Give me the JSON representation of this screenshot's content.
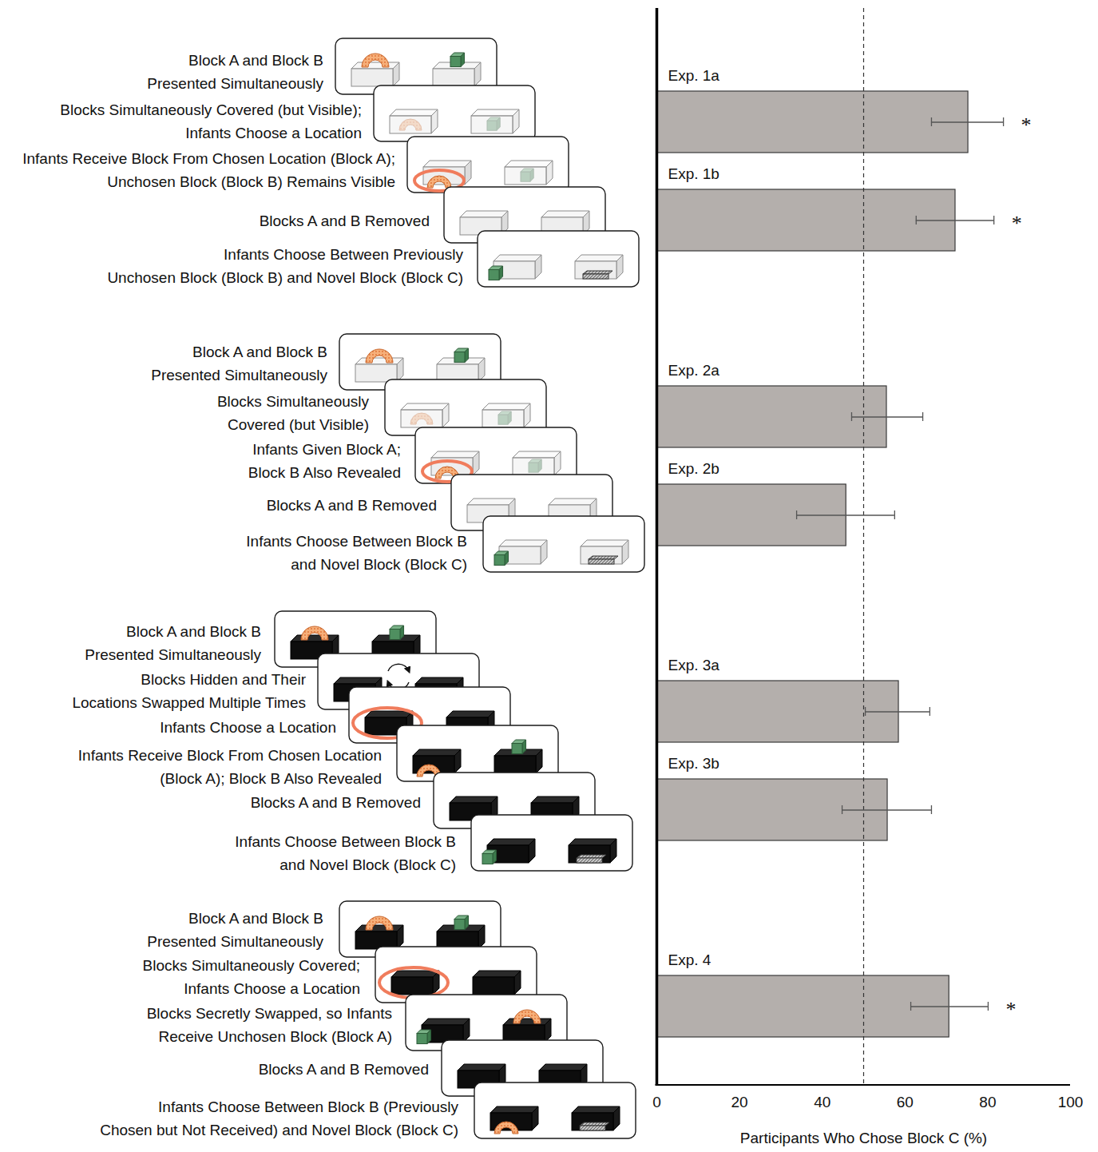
{
  "chart_data": {
    "type": "bar",
    "orientation": "horizontal",
    "categories": [
      "Exp. 1a",
      "Exp. 1b",
      null,
      "Exp. 2a",
      "Exp. 2b",
      null,
      "Exp. 3a",
      "Exp. 3b",
      null,
      "Exp. 4"
    ],
    "values": [
      75.3,
      72.2,
      null,
      55.6,
      45.8,
      null,
      58.5,
      55.8,
      null,
      70.7
    ],
    "error_bars": [
      [
        66.4,
        83.8
      ],
      [
        62.7,
        81.5
      ],
      null,
      [
        47.1,
        64.3
      ],
      [
        33.8,
        57.5
      ],
      null,
      [
        50.4,
        66.0
      ],
      [
        44.8,
        66.4
      ],
      null,
      [
        61.4,
        80.1
      ]
    ],
    "annotations": [
      "*",
      "*",
      null,
      null,
      null,
      null,
      null,
      null,
      null,
      "*"
    ],
    "reference_line": 50,
    "color": "#b4afac",
    "xlabel": "Participants Who Chose Block C (%)",
    "xlim": [
      0,
      100
    ],
    "xticks": [
      0,
      20,
      40,
      60,
      80,
      100
    ],
    "grid": false,
    "tick_labels": "x"
  },
  "diagram": {
    "groups": [
      {
        "steps": [
          [
            "Block A and Block B",
            "Presented Simultaneously"
          ],
          [
            "Blocks Simultaneously Covered (but Visible);",
            "Infants Choose a Location"
          ],
          [
            "Infants Receive Block From Chosen Location (Block A);",
            "Unchosen Block (Block B) Remains Visible"
          ],
          [
            "Blocks A and B Removed"
          ],
          [
            "Infants Choose Between Previously",
            "Unchosen Block (Block B) and Novel Block (Block C)"
          ]
        ]
      },
      {
        "steps": [
          [
            "Block A and Block B",
            "Presented Simultaneously"
          ],
          [
            "Blocks Simultaneously",
            "Covered (but Visible)"
          ],
          [
            "Infants Given Block A;",
            "Block B Also Revealed"
          ],
          [
            "Blocks A and B Removed"
          ],
          [
            "Infants Choose Between Block B",
            "and Novel Block (Block C)"
          ]
        ]
      },
      {
        "steps": [
          [
            "Block A and Block B",
            "Presented Simultaneously"
          ],
          [
            "Blocks Hidden and Their",
            "Locations Swapped Multiple Times"
          ],
          [
            "Infants Choose a Location"
          ],
          [
            "Infants Receive Block From Chosen Location",
            "(Block A); Block B Also Revealed"
          ],
          [
            "Blocks A and B Removed"
          ],
          [
            "Infants Choose Between Block B",
            "and Novel Block (Block C)"
          ]
        ]
      },
      {
        "steps": [
          [
            "Block A and Block B",
            "Presented Simultaneously"
          ],
          [
            "Blocks Simultaneously Covered;",
            "Infants Choose a Location"
          ],
          [
            "Blocks Secretly Swapped, so Infants",
            "Receive Unchosen Block (Block A)"
          ],
          [
            "Blocks A and B Removed"
          ],
          [
            "Infants Choose Between Block B (Previously",
            "Chosen but Not Received) and Novel Block (Block C)"
          ]
        ]
      }
    ]
  }
}
